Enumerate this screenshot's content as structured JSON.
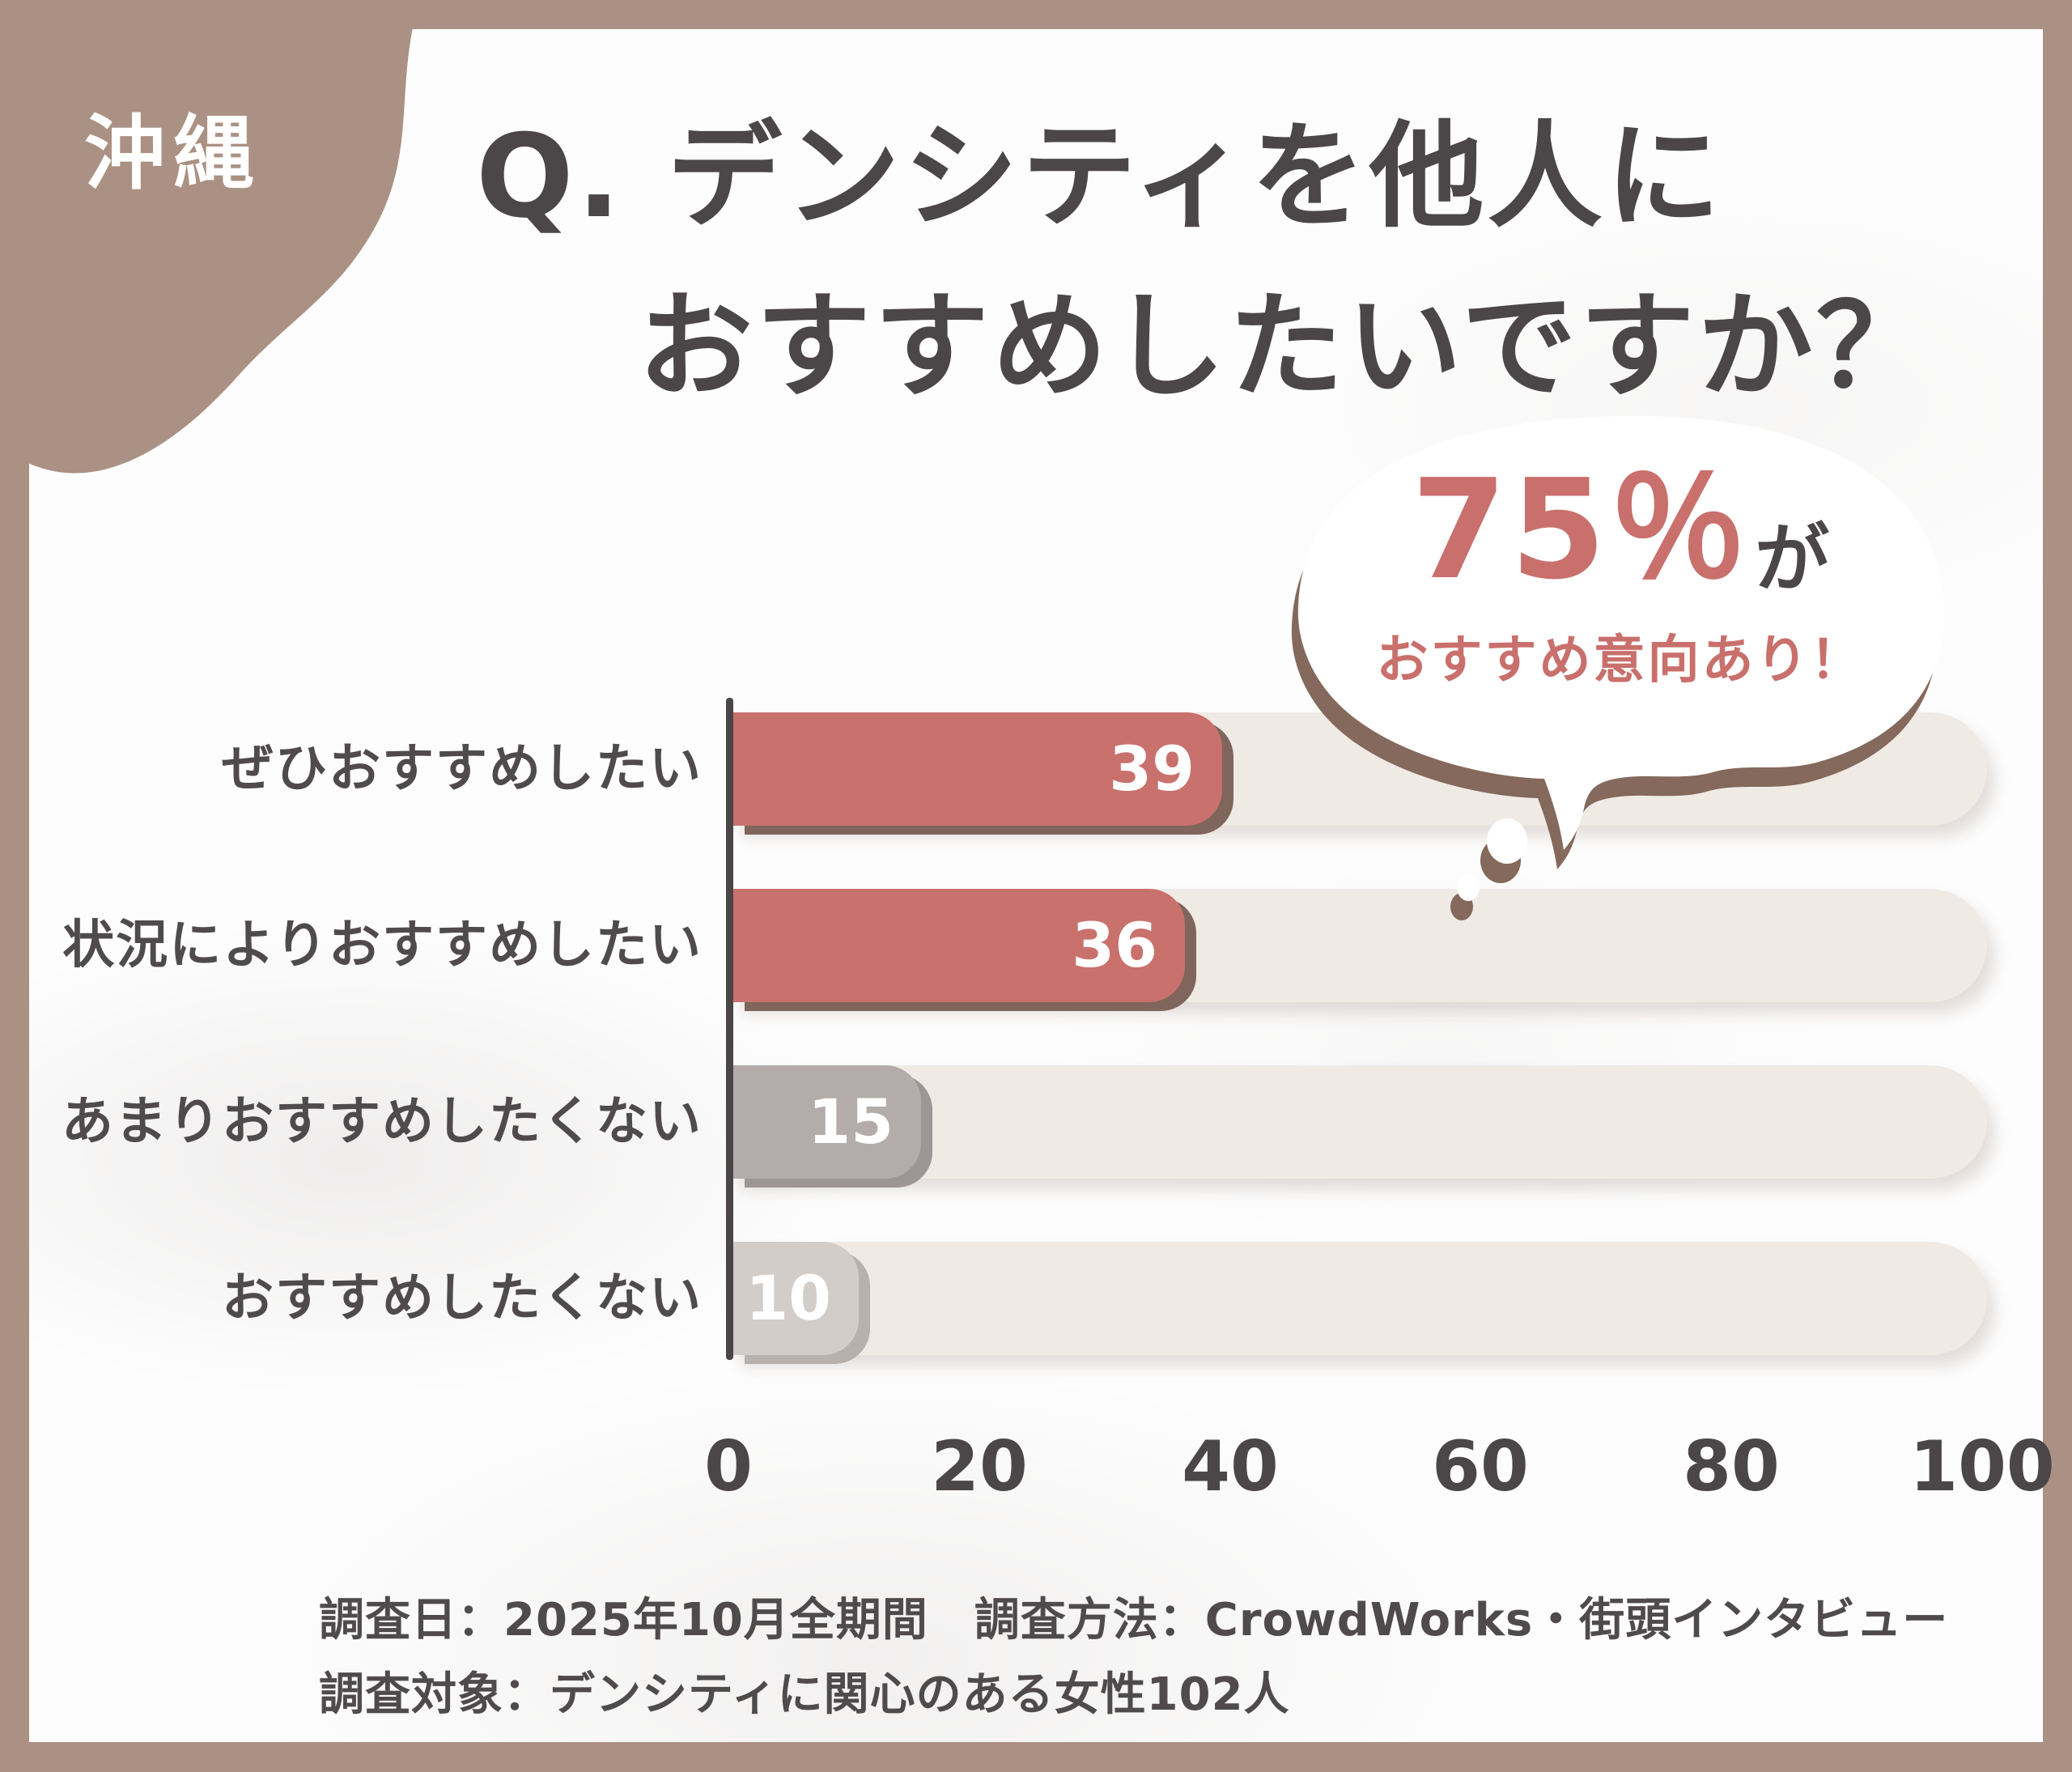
{
  "badge": {
    "label": "沖縄"
  },
  "title": {
    "line1": "Q. デンシティを他人に",
    "line2": "おすすめしたいですか？"
  },
  "callout": {
    "percent": "75％",
    "suffix": "が",
    "line2": "おすすめ意向あり！"
  },
  "chart_data": {
    "type": "bar",
    "orientation": "horizontal",
    "title": "デンシティを他人におすすめしたいですか？",
    "categories": [
      "ぜひおすすめしたい",
      "状況によりおすすめしたい",
      "あまりおすすめしたくない",
      "おすすめしたくない"
    ],
    "values": [
      39,
      36,
      15,
      10
    ],
    "xlim": [
      0,
      100
    ],
    "xticks": [
      0,
      20,
      40,
      60,
      80,
      100
    ],
    "grid": false,
    "legend": false,
    "bar_colors": [
      "#c9716d",
      "#c9716d",
      "#b3acaa",
      "#d3cdca"
    ],
    "bar_edge_colors": [
      "#7f655b",
      "#7f655b",
      "#9c9694",
      "#b7b1ae"
    ],
    "track_color": "#f0eae5",
    "annotation": "75％がおすすめ意向あり！"
  },
  "footer": {
    "line1": "調査日：2025年10月全期間　調査方法：CrowdWorks・街頭インタビュー",
    "line2": "調査対象：デンシティに関心のある女性102人"
  },
  "colors": {
    "frame": "#ab9183",
    "card": "#fdfdfd",
    "accent": "#c9706c",
    "text_dark": "#4b4748",
    "track": "#f0eae5",
    "bubble_shadow": "#84695c",
    "axis": "#4a4647"
  }
}
